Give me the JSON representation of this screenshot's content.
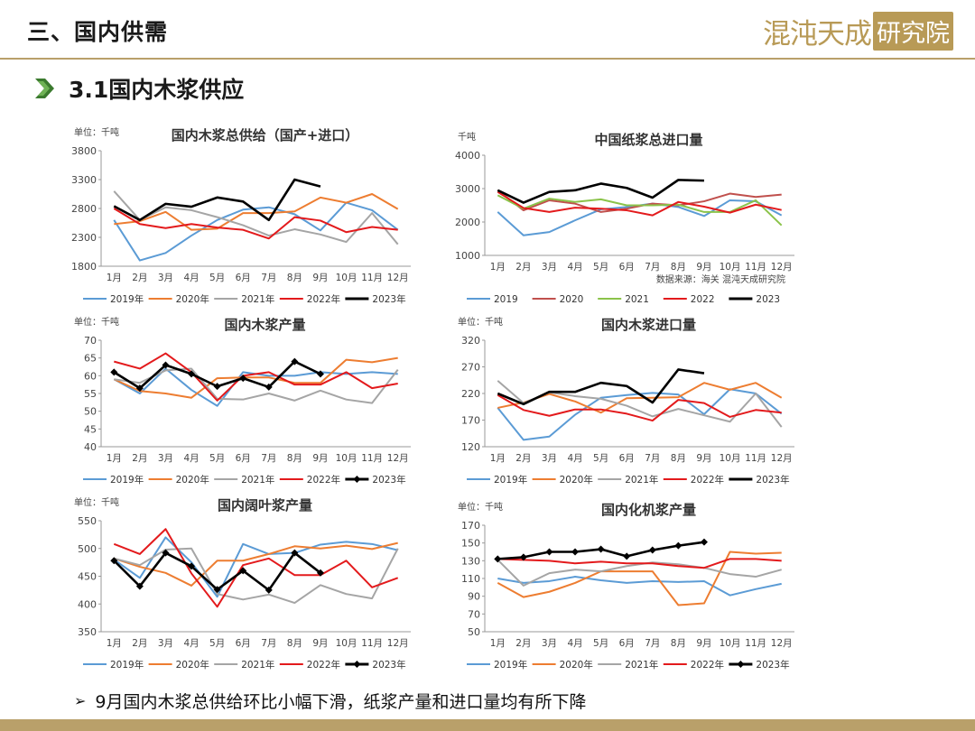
{
  "header": {
    "section_title": "三、国内供需",
    "logo_text_a": "混沌天成",
    "logo_text_b": "研究院"
  },
  "subtitle": "3.1国内木浆供应",
  "footnote": "9月国内木浆总供给环比小幅下滑，纸浆产量和进口量均有所下降",
  "colors": {
    "accent": "#b9a06a",
    "chevron": "#3b7a2e",
    "s2019": "#5b9bd5",
    "s2020": "#ed7d31",
    "s2021": "#a5a5a5",
    "s2022": "#e31a1c",
    "s2023": "#000000",
    "s2021_green": "#8bc34a",
    "s2020_red2": "#c0504d"
  },
  "chart_data": [
    {
      "type": "line",
      "title": "国内木浆总供给（国产+进口）",
      "unit": "单位：千吨",
      "categories": [
        "1月",
        "2月",
        "3月",
        "4月",
        "5月",
        "6月",
        "7月",
        "8月",
        "9月",
        "10月",
        "11月",
        "12月"
      ],
      "ylim": [
        1800,
        3800
      ],
      "yticks": [
        "1800",
        "2300",
        "2800",
        "3300",
        "3800"
      ],
      "series": [
        {
          "name": "2019年",
          "color": "#5b9bd5",
          "marker": false,
          "values": [
            2600,
            1900,
            2030,
            2330,
            2600,
            2780,
            2820,
            2700,
            2420,
            2900,
            2770,
            2430
          ]
        },
        {
          "name": "2020年",
          "color": "#ed7d31",
          "marker": false,
          "values": [
            2530,
            2580,
            2740,
            2430,
            2450,
            2720,
            2720,
            2750,
            2990,
            2900,
            3050,
            2790
          ]
        },
        {
          "name": "2021年",
          "color": "#a5a5a5",
          "marker": false,
          "values": [
            3100,
            2600,
            2820,
            2770,
            2650,
            2510,
            2330,
            2440,
            2350,
            2220,
            2720,
            2180
          ]
        },
        {
          "name": "2022年",
          "color": "#e31a1c",
          "marker": false,
          "values": [
            2800,
            2530,
            2460,
            2530,
            2470,
            2430,
            2280,
            2650,
            2590,
            2390,
            2480,
            2430
          ]
        },
        {
          "name": "2023年",
          "color": "#000000",
          "marker": false,
          "values": [
            2840,
            2600,
            2880,
            2830,
            2990,
            2920,
            2600,
            3300,
            3180,
            null,
            null,
            null
          ]
        }
      ]
    },
    {
      "type": "line",
      "title": "中国纸浆总进口量",
      "unit": "千吨",
      "source": "数据来源：海关 混沌天成研究院",
      "categories": [
        "1月",
        "2月",
        "3月",
        "4月",
        "5月",
        "6月",
        "7月",
        "8月",
        "9月",
        "10月",
        "11月",
        "12月"
      ],
      "ylim": [
        1000,
        4000
      ],
      "yticks": [
        "1000",
        "2000",
        "3000",
        "4000"
      ],
      "series": [
        {
          "name": "2019",
          "color": "#5b9bd5",
          "marker": false,
          "values": [
            2300,
            1600,
            1700,
            2050,
            2380,
            2450,
            2550,
            2450,
            2180,
            2650,
            2620,
            2200
          ]
        },
        {
          "name": "2020",
          "color": "#c0504d",
          "marker": false,
          "values": [
            2950,
            2350,
            2650,
            2550,
            2300,
            2400,
            2550,
            2500,
            2620,
            2850,
            2750,
            2820
          ]
        },
        {
          "name": "2021",
          "color": "#8bc34a",
          "marker": false,
          "values": [
            2800,
            2400,
            2700,
            2600,
            2680,
            2500,
            2500,
            2520,
            2300,
            2300,
            2650,
            1900
          ]
        },
        {
          "name": "2022",
          "color": "#e31a1c",
          "marker": false,
          "values": [
            2900,
            2420,
            2300,
            2430,
            2400,
            2350,
            2200,
            2600,
            2460,
            2280,
            2520,
            2360
          ]
        },
        {
          "name": "2023",
          "color": "#000000",
          "marker": false,
          "values": [
            2950,
            2580,
            2900,
            2950,
            3150,
            3020,
            2730,
            3260,
            3240,
            null,
            null,
            null
          ]
        }
      ]
    },
    {
      "type": "line",
      "title": "国内木浆产量",
      "unit": "单位：千吨",
      "categories": [
        "1月",
        "2月",
        "3月",
        "4月",
        "5月",
        "6月",
        "7月",
        "8月",
        "9月",
        "10月",
        "11月",
        "12月"
      ],
      "ylim": [
        40,
        70
      ],
      "yticks": [
        "40",
        "45",
        "50",
        "55",
        "60",
        "65",
        "70"
      ],
      "series": [
        {
          "name": "2019年",
          "color": "#5b9bd5",
          "marker": false,
          "values": [
            59,
            55,
            62,
            56,
            51.5,
            61,
            60,
            60,
            61,
            60.5,
            61,
            60.5
          ]
        },
        {
          "name": "2020年",
          "color": "#ed7d31",
          "marker": false,
          "values": [
            59,
            55.7,
            55,
            53.8,
            59.3,
            59.5,
            59.5,
            58,
            58,
            64.5,
            63.8,
            65
          ]
        },
        {
          "name": "2021年",
          "color": "#a5a5a5",
          "marker": false,
          "values": [
            59,
            58,
            61.5,
            62,
            53.5,
            53.3,
            55,
            53,
            55.8,
            53.3,
            52.3,
            61.7
          ]
        },
        {
          "name": "2022年",
          "color": "#e31a1c",
          "marker": false,
          "values": [
            64,
            62,
            66.3,
            61,
            53,
            60,
            61,
            57.5,
            57.5,
            61,
            56.5,
            57.8
          ]
        },
        {
          "name": "2023年",
          "color": "#000000",
          "marker": true,
          "values": [
            61,
            56.5,
            63,
            60.5,
            57,
            59.3,
            56.8,
            64,
            60.5,
            null,
            null,
            null
          ]
        }
      ]
    },
    {
      "type": "line",
      "title": "国内木浆进口量",
      "unit": "单位：千吨",
      "categories": [
        "1月",
        "2月",
        "3月",
        "4月",
        "5月",
        "6月",
        "7月",
        "8月",
        "9月",
        "10月",
        "11月",
        "12月"
      ],
      "ylim": [
        120,
        320
      ],
      "yticks": [
        "120",
        "170",
        "220",
        "270",
        "320"
      ],
      "series": [
        {
          "name": "2019年",
          "color": "#5b9bd5",
          "marker": false,
          "values": [
            193,
            133,
            139,
            180,
            212,
            217,
            221,
            218,
            181,
            228,
            220,
            182
          ]
        },
        {
          "name": "2020年",
          "color": "#ed7d31",
          "marker": false,
          "values": [
            193,
            203,
            219,
            205,
            184,
            211,
            212,
            213,
            240,
            227,
            240,
            212
          ]
        },
        {
          "name": "2021年",
          "color": "#a5a5a5",
          "marker": false,
          "values": [
            244,
            202,
            222,
            215,
            210,
            197,
            177,
            191,
            179,
            167,
            220,
            157
          ]
        },
        {
          "name": "2022年",
          "color": "#e31a1c",
          "marker": false,
          "values": [
            217,
            189,
            178,
            190,
            190,
            182,
            169,
            208,
            202,
            176,
            189,
            184
          ]
        },
        {
          "name": "2023年",
          "color": "#000000",
          "marker": false,
          "values": [
            220,
            200,
            223,
            223,
            240,
            234,
            203,
            265,
            258,
            null,
            null,
            null
          ]
        }
      ]
    },
    {
      "type": "line",
      "title": "国内阔叶浆产量",
      "unit": "单位：千吨",
      "categories": [
        "1月",
        "2月",
        "3月",
        "4月",
        "5月",
        "6月",
        "7月",
        "8月",
        "9月",
        "10月",
        "11月",
        "12月"
      ],
      "ylim": [
        350,
        550
      ],
      "yticks": [
        "350",
        "400",
        "450",
        "500",
        "550"
      ],
      "series": [
        {
          "name": "2019年",
          "color": "#5b9bd5",
          "marker": false,
          "values": [
            480,
            447,
            520,
            475,
            413,
            508,
            490,
            492,
            507,
            512,
            508,
            497
          ]
        },
        {
          "name": "2020年",
          "color": "#ed7d31",
          "marker": false,
          "values": [
            482,
            467,
            456,
            433,
            478,
            478,
            490,
            504,
            500,
            505,
            499,
            510
          ]
        },
        {
          "name": "2021年",
          "color": "#a5a5a5",
          "marker": false,
          "values": [
            482,
            470,
            498,
            500,
            418,
            408,
            417,
            402,
            434,
            418,
            410,
            500
          ]
        },
        {
          "name": "2022年",
          "color": "#e31a1c",
          "marker": false,
          "values": [
            508,
            490,
            535,
            455,
            395,
            470,
            482,
            452,
            452,
            478,
            430,
            447
          ]
        },
        {
          "name": "2023年",
          "color": "#000000",
          "marker": true,
          "values": [
            478,
            432,
            492,
            468,
            426,
            460,
            425,
            492,
            456,
            null,
            null,
            null
          ]
        }
      ]
    },
    {
      "type": "line",
      "title": "国内化机浆产量",
      "unit": "单位：千吨",
      "categories": [
        "1月",
        "2月",
        "3月",
        "4月",
        "5月",
        "6月",
        "7月",
        "8月",
        "9月",
        "10月",
        "11月",
        "12月"
      ],
      "ylim": [
        50,
        170
      ],
      "yticks": [
        "50",
        "70",
        "90",
        "110",
        "130",
        "150",
        "170"
      ],
      "series": [
        {
          "name": "2019年",
          "color": "#5b9bd5",
          "marker": false,
          "values": [
            110,
            105,
            107,
            112,
            108,
            105,
            107,
            106,
            107,
            91,
            98,
            104
          ]
        },
        {
          "name": "2020年",
          "color": "#ed7d31",
          "marker": false,
          "values": [
            105,
            89,
            95,
            105,
            118,
            118,
            118,
            80,
            82,
            140,
            138,
            139
          ]
        },
        {
          "name": "2021年",
          "color": "#a5a5a5",
          "marker": false,
          "values": [
            131,
            102,
            116,
            120,
            118,
            124,
            128,
            126,
            122,
            115,
            112,
            120
          ]
        },
        {
          "name": "2022年",
          "color": "#e31a1c",
          "marker": false,
          "values": [
            132,
            131,
            130,
            127,
            129,
            127,
            127,
            124,
            122,
            132,
            132,
            130
          ]
        },
        {
          "name": "2023年",
          "color": "#000000",
          "marker": true,
          "values": [
            132,
            134,
            140,
            140,
            143,
            135,
            142,
            147,
            151,
            null,
            null,
            null
          ]
        }
      ]
    }
  ]
}
